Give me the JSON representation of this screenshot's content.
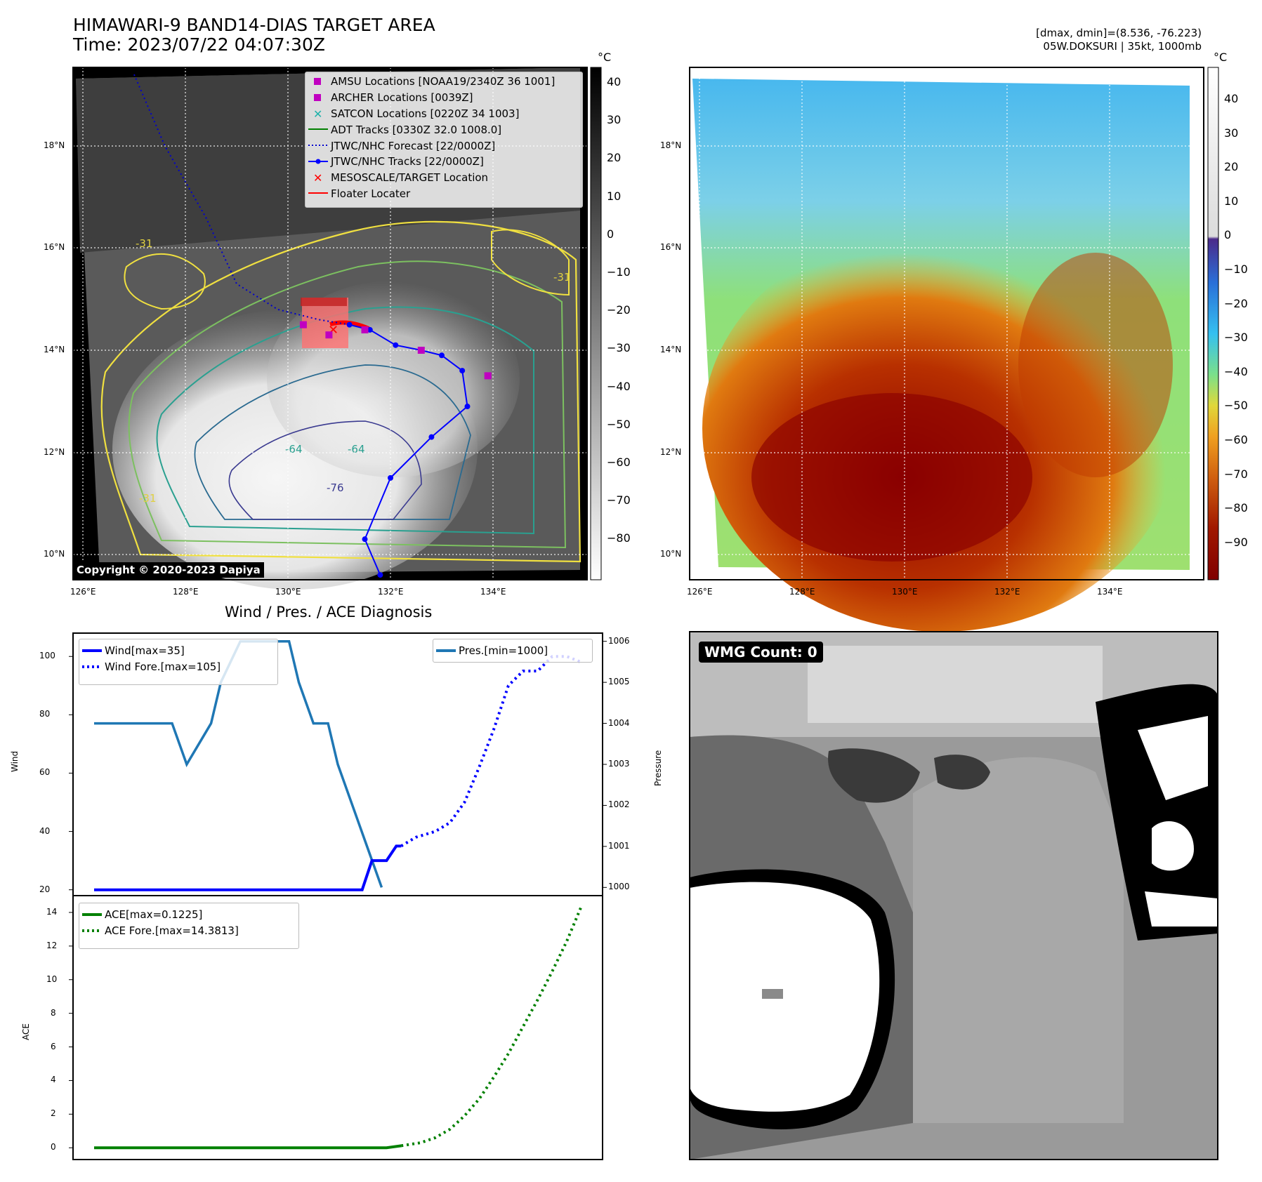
{
  "header": {
    "title_line1": "HIMAWARI-9 BAND14-DIAS TARGET AREA",
    "title_line2": "Time: 2023/07/22 04:07:30Z",
    "right_line1": "[dmax, dmin]=(8.536, -76.223)",
    "right_line2": "05W.DOKSURI | 35kt, 1000mb"
  },
  "map": {
    "lat_labels": [
      "18°N",
      "16°N",
      "14°N",
      "12°N",
      "10°N"
    ],
    "lon_labels": [
      "126°E",
      "128°E",
      "130°E",
      "132°E",
      "134°E"
    ],
    "colorbar_unit": "°C",
    "gray_colorbar_ticks": [
      "40",
      "30",
      "20",
      "10",
      "0",
      "−10",
      "−20",
      "−30",
      "−40",
      "−50",
      "−60",
      "−70",
      "−80"
    ],
    "color_colorbar_ticks": [
      "40",
      "30",
      "20",
      "10",
      "0",
      "−10",
      "−20",
      "−30",
      "−40",
      "−50",
      "−60",
      "−70",
      "−80",
      "−90"
    ],
    "contour_labels": [
      "-31",
      "-64",
      "-76"
    ],
    "copyright": "Copyright © 2020-2023 Dapiya",
    "legend": [
      {
        "label": "AMSU Locations [NOAA19/2340Z 36 1001]",
        "marker": "square",
        "color": "#c000c0"
      },
      {
        "label": "ARCHER Locations [0039Z]",
        "marker": "square",
        "color": "#c000c0"
      },
      {
        "label": "SATCON Locations [0220Z 34 1003]",
        "marker": "x",
        "color": "#20b2aa"
      },
      {
        "label": "ADT Tracks [0330Z 32.0 1008.0]",
        "marker": "line",
        "color": "#008000"
      },
      {
        "label": "JTWC/NHC Forecast [22/0000Z]",
        "marker": "dotted",
        "color": "#0000cc"
      },
      {
        "label": "JTWC/NHC Tracks [22/0000Z]",
        "marker": "line-dot",
        "color": "#0000ff"
      },
      {
        "label": "MESOSCALE/TARGET Location",
        "marker": "x",
        "color": "#ff0000"
      },
      {
        "label": "Floater Locater",
        "marker": "line",
        "color": "#ff0000"
      }
    ],
    "track_jtwc": [
      [
        127.0,
        19.4
      ],
      [
        127.6,
        18.0
      ],
      [
        128.4,
        16.6
      ],
      [
        129.0,
        15.3
      ],
      [
        129.8,
        14.8
      ],
      [
        130.6,
        14.6
      ],
      [
        131.2,
        14.5
      ],
      [
        131.6,
        14.4
      ],
      [
        132.1,
        14.1
      ],
      [
        132.6,
        14.0
      ],
      [
        133.0,
        13.9
      ],
      [
        133.4,
        13.6
      ],
      [
        133.5,
        12.9
      ],
      [
        132.8,
        12.3
      ],
      [
        132.0,
        11.5
      ],
      [
        131.5,
        10.3
      ],
      [
        131.8,
        9.6
      ]
    ],
    "forecast_points": [
      [
        128.3,
        15.5
      ],
      [
        131.5,
        14.4
      ],
      [
        132.5,
        14.0
      ],
      [
        133.0,
        13.9
      ]
    ],
    "amsu_points": [
      [
        130.3,
        14.5
      ],
      [
        130.8,
        14.3
      ],
      [
        131.5,
        14.4
      ],
      [
        132.6,
        14.0
      ],
      [
        133.9,
        13.5
      ]
    ]
  },
  "wind_panel": {
    "title": "Wind / Pres. / ACE Diagnosis",
    "left_axis_label": "Wind",
    "right_axis_label": "Pressure",
    "legend_left": [
      "Wind[max=35]",
      "Wind Fore.[max=105]"
    ],
    "legend_right": [
      "Pres.[min=1000]"
    ],
    "wind_ticks": [
      "100",
      "80",
      "60",
      "40",
      "20"
    ],
    "pressure_ticks": [
      "1006",
      "1005",
      "1004",
      "1003",
      "1002",
      "1001",
      "1000"
    ],
    "wind_ylim": [
      18,
      108
    ],
    "pressure_ylim": [
      999.8,
      1006.2
    ],
    "x_range": [
      0,
      100
    ]
  },
  "ace_panel": {
    "axis_label": "ACE",
    "legend": [
      "ACE[max=0.1225]",
      "ACE Fore.[max=14.3813]"
    ],
    "ticks": [
      "14",
      "12",
      "10",
      "8",
      "6",
      "4",
      "2",
      "0"
    ],
    "ylim": [
      -0.7,
      15
    ]
  },
  "chart_data": [
    {
      "type": "line",
      "title": "Wind / Pres. / ACE Diagnosis",
      "ylabel": "Wind",
      "ylim": [
        18,
        108
      ],
      "series": [
        {
          "name": "Wind[max=35]",
          "x": [
            0,
            5,
            10,
            20,
            30,
            40,
            50,
            55,
            57,
            60,
            62,
            63
          ],
          "values": [
            20,
            20,
            20,
            20,
            20,
            20,
            20,
            20,
            30,
            30,
            35,
            35
          ]
        },
        {
          "name": "Wind Fore.[max=105]",
          "x": [
            63,
            66,
            70,
            73,
            76,
            79,
            82,
            85,
            88,
            91,
            94,
            97,
            100
          ],
          "values": [
            35,
            38,
            40,
            43,
            50,
            62,
            75,
            90,
            95,
            95,
            100,
            100,
            98
          ]
        }
      ]
    },
    {
      "type": "line",
      "ylabel": "Pressure",
      "ylim": [
        999.8,
        1006.2
      ],
      "series": [
        {
          "name": "Pres.[min=1000]",
          "x": [
            0,
            14,
            16,
            19,
            24,
            26,
            30,
            40,
            42,
            45,
            48,
            50,
            53,
            56,
            59
          ],
          "values": [
            1004,
            1004,
            1004,
            1003,
            1004,
            1005,
            1006,
            1006,
            1005,
            1004,
            1004,
            1003,
            1002,
            1001,
            1000
          ]
        }
      ]
    },
    {
      "type": "line",
      "ylabel": "ACE",
      "ylim": [
        -0.7,
        15
      ],
      "series": [
        {
          "name": "ACE[max=0.1225]",
          "x": [
            0,
            20,
            40,
            60,
            63
          ],
          "values": [
            0,
            0,
            0,
            0,
            0.12
          ]
        },
        {
          "name": "ACE Fore.[max=14.3813]",
          "x": [
            63,
            67,
            70,
            73,
            76,
            79,
            82,
            85,
            88,
            91,
            94,
            97,
            100
          ],
          "values": [
            0.12,
            0.3,
            0.6,
            1.1,
            1.9,
            2.9,
            4.2,
            5.6,
            7.2,
            8.8,
            10.5,
            12.3,
            14.3813
          ]
        }
      ]
    }
  ],
  "wmg": {
    "count_label": "WMG Count: 0"
  }
}
